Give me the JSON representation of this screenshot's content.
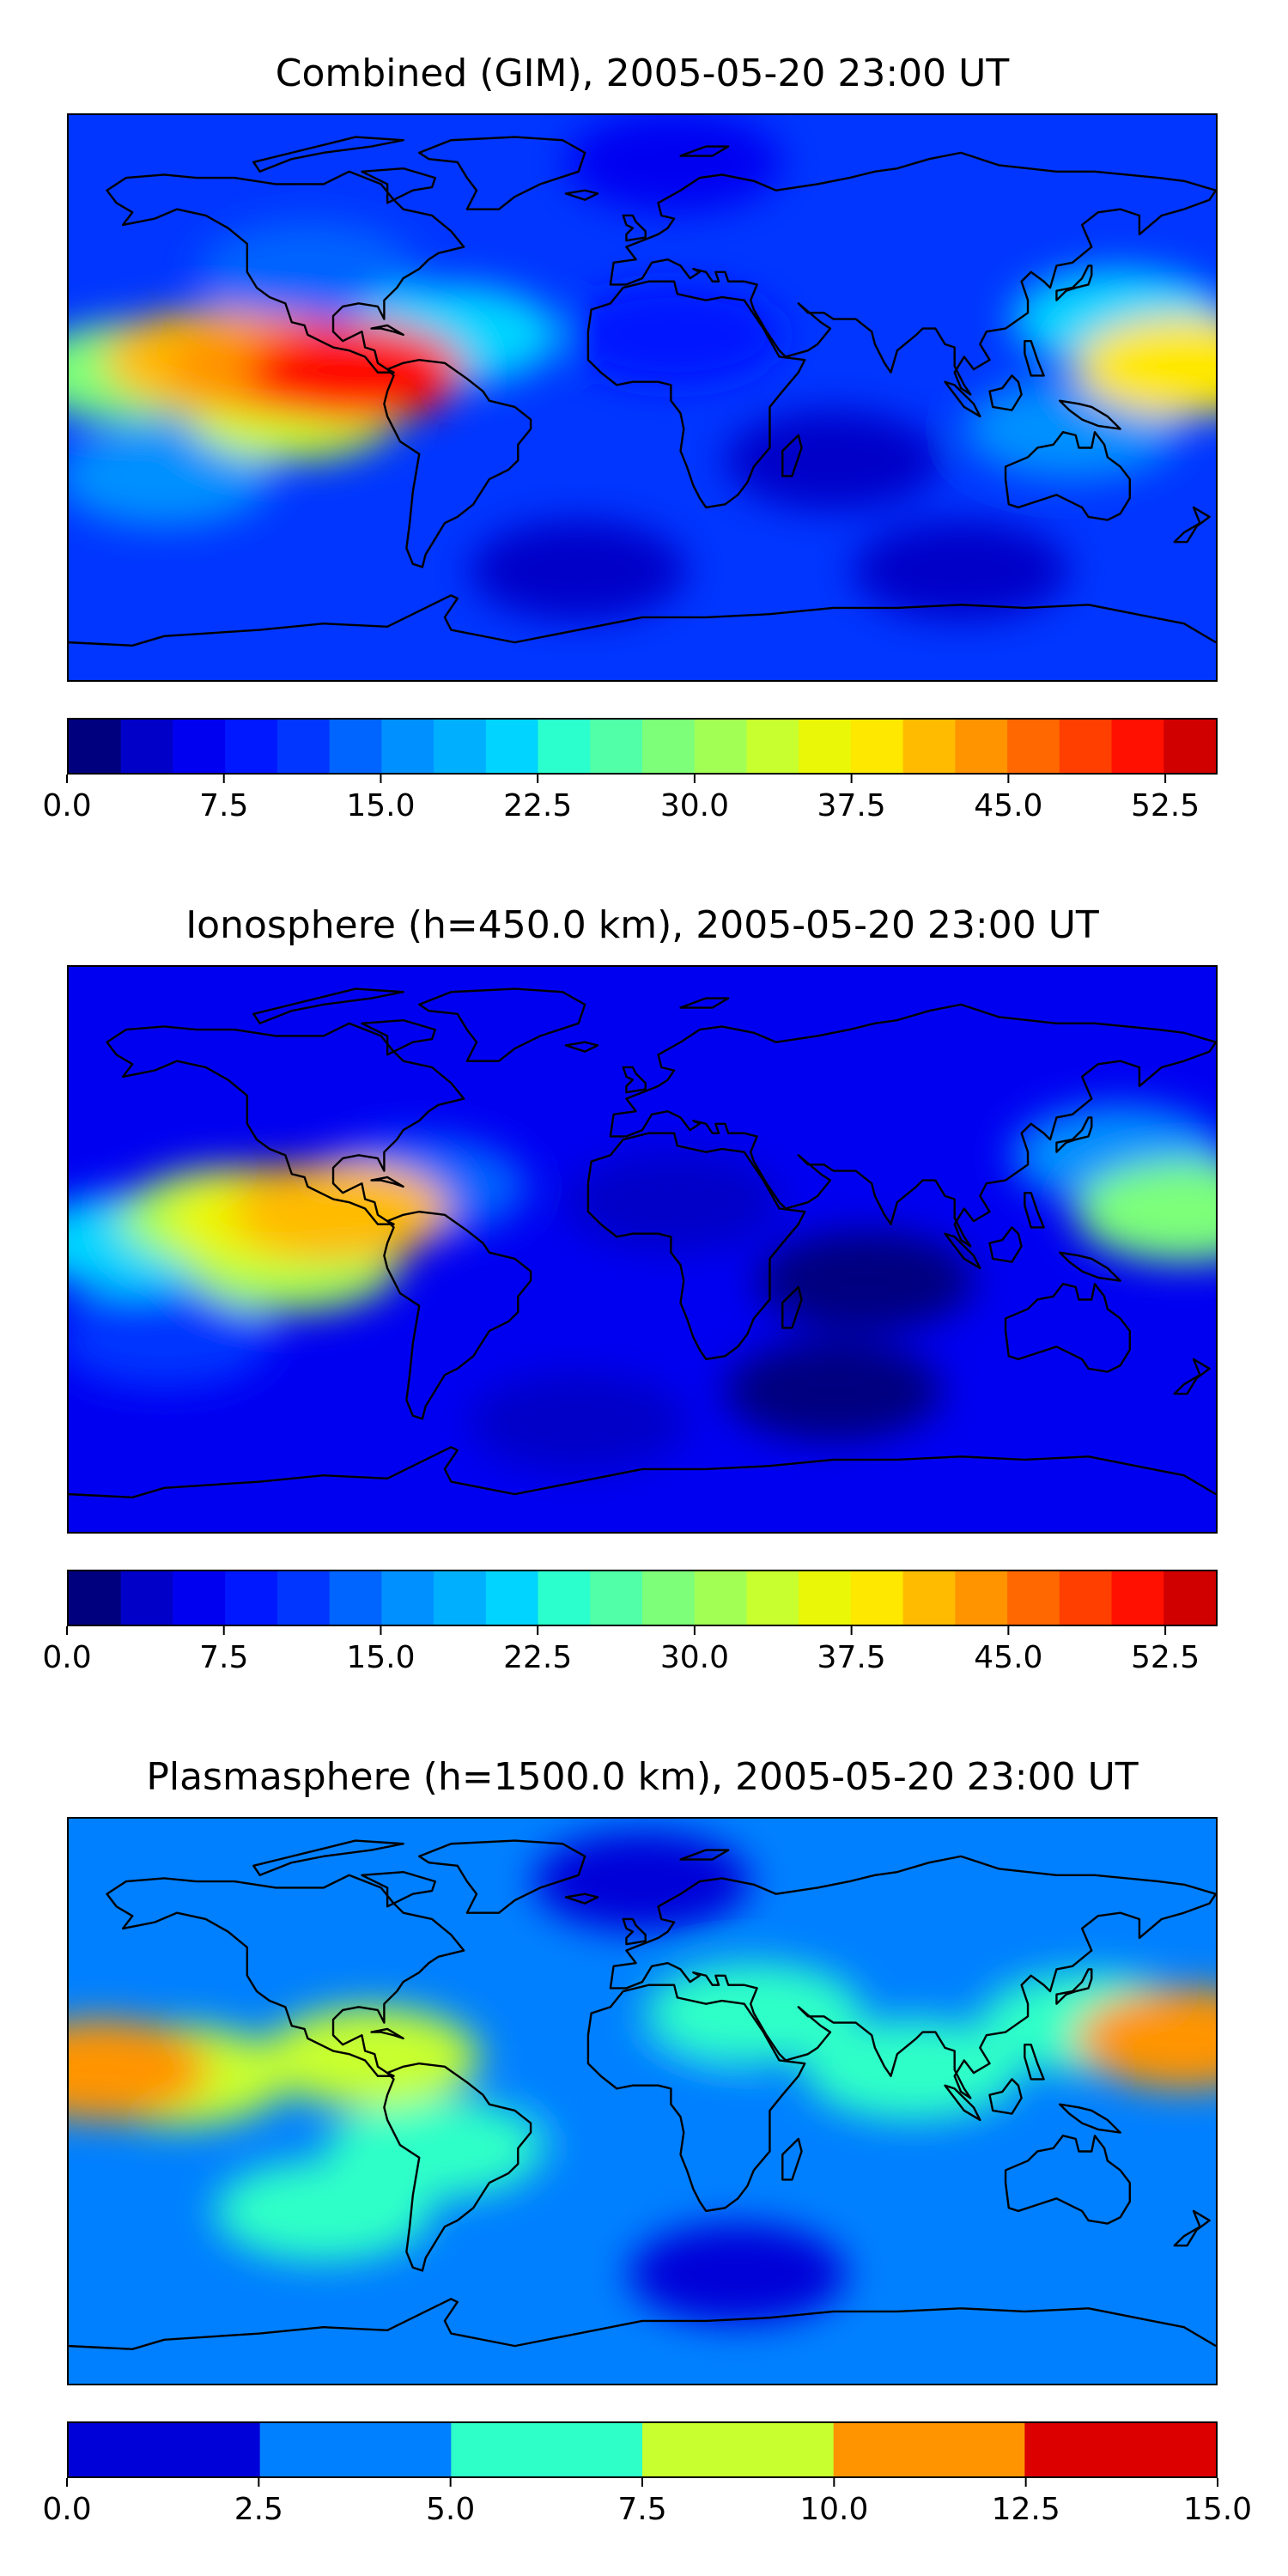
{
  "chart_data": [
    {
      "type": "heatmap",
      "title": "Combined (GIM), 2005-05-20 23:00 UT",
      "colorbar": {
        "levels": [
          0.0,
          2.5,
          5.0,
          7.5,
          10.0,
          12.5,
          15.0,
          17.5,
          20.0,
          22.5,
          25.0,
          27.5,
          30.0,
          32.5,
          35.0,
          37.5,
          40.0,
          42.5,
          45.0,
          47.5,
          50.0,
          52.5,
          55.0
        ],
        "colors": [
          "#00007f",
          "#0000c8",
          "#0000f1",
          "#0018ff",
          "#0036ff",
          "#0064ff",
          "#0090ff",
          "#00b0ff",
          "#00d4ff",
          "#2bffce",
          "#50ffa8",
          "#7dff7a",
          "#a2ff54",
          "#c8ff2e",
          "#eaf706",
          "#ffe800",
          "#ffbb00",
          "#ff9400",
          "#ff6800",
          "#ff3f00",
          "#ff1000",
          "#d10000",
          "#8b0000"
        ],
        "tick_values": [
          0.0,
          7.5,
          15.0,
          22.5,
          30.0,
          37.5,
          45.0,
          52.5
        ],
        "tick_labels": [
          "0.0",
          "7.5",
          "15.0",
          "22.5",
          "30.0",
          "37.5",
          "45.0",
          "52.5"
        ],
        "range": [
          0.0,
          55.0
        ]
      },
      "features": [
        {
          "lon": -115,
          "lat": 10,
          "value": 44
        },
        {
          "lon": -90,
          "lat": 8,
          "value": 50
        },
        {
          "lon": -135,
          "lat": 12,
          "value": 40
        },
        {
          "lon": -110,
          "lat": -4,
          "value": 34
        },
        {
          "lon": -160,
          "lat": 8,
          "value": 28
        },
        {
          "lon": -60,
          "lat": 20,
          "value": 20
        },
        {
          "lon": -105,
          "lat": 40,
          "value": 14
        },
        {
          "lon": 170,
          "lat": 10,
          "value": 38
        },
        {
          "lon": 150,
          "lat": 25,
          "value": 22
        },
        {
          "lon": 135,
          "lat": -10,
          "value": 16
        },
        {
          "lon": -150,
          "lat": -25,
          "value": 16
        },
        {
          "lon": 10,
          "lat": 20,
          "value": 8
        },
        {
          "lon": 60,
          "lat": -20,
          "value": 3
        },
        {
          "lon": -20,
          "lat": -55,
          "value": 4
        },
        {
          "lon": 100,
          "lat": -55,
          "value": 3
        },
        {
          "lon": 10,
          "lat": 75,
          "value": 6
        }
      ],
      "background_value": 10
    },
    {
      "type": "heatmap",
      "title": "Ionosphere  (h=450.0 km), 2005-05-20 23:00 UT",
      "colorbar": {
        "levels": [
          0.0,
          2.5,
          5.0,
          7.5,
          10.0,
          12.5,
          15.0,
          17.5,
          20.0,
          22.5,
          25.0,
          27.5,
          30.0,
          32.5,
          35.0,
          37.5,
          40.0,
          42.5,
          45.0,
          47.5,
          50.0,
          52.5,
          55.0
        ],
        "colors": [
          "#00007f",
          "#0000c8",
          "#0000f1",
          "#0018ff",
          "#0036ff",
          "#0064ff",
          "#0090ff",
          "#00b0ff",
          "#00d4ff",
          "#2bffce",
          "#50ffa8",
          "#7dff7a",
          "#a2ff54",
          "#c8ff2e",
          "#eaf706",
          "#ffe800",
          "#ffbb00",
          "#ff9400",
          "#ff6800",
          "#ff3f00",
          "#ff1000",
          "#d10000",
          "#8b0000"
        ],
        "tick_values": [
          0.0,
          7.5,
          15.0,
          22.5,
          30.0,
          37.5,
          45.0,
          52.5
        ],
        "tick_labels": [
          "0.0",
          "7.5",
          "15.0",
          "22.5",
          "30.0",
          "37.5",
          "45.0",
          "52.5"
        ],
        "range": [
          0.0,
          55.0
        ]
      },
      "features": [
        {
          "lon": -115,
          "lat": 10,
          "value": 36
        },
        {
          "lon": -95,
          "lat": 12,
          "value": 40
        },
        {
          "lon": -130,
          "lat": 10,
          "value": 30
        },
        {
          "lon": -110,
          "lat": -4,
          "value": 30
        },
        {
          "lon": -160,
          "lat": 2,
          "value": 22
        },
        {
          "lon": -70,
          "lat": 20,
          "value": 14
        },
        {
          "lon": 170,
          "lat": 12,
          "value": 28
        },
        {
          "lon": 150,
          "lat": 30,
          "value": 16
        },
        {
          "lon": -150,
          "lat": -28,
          "value": 12
        },
        {
          "lon": 10,
          "lat": 15,
          "value": 4
        },
        {
          "lon": 70,
          "lat": -10,
          "value": 1
        },
        {
          "lon": 60,
          "lat": -45,
          "value": 1
        },
        {
          "lon": -20,
          "lat": -55,
          "value": 3
        },
        {
          "lon": 20,
          "lat": 75,
          "value": 5
        }
      ],
      "background_value": 7
    },
    {
      "type": "heatmap",
      "title": "Plasmasphere (h=1500.0 km), 2005-05-20 23:00 UT",
      "colorbar": {
        "levels": [
          0.0,
          2.5,
          5.0,
          7.5,
          10.0,
          12.5,
          15.0
        ],
        "colors": [
          "#0000d8",
          "#0080ff",
          "#2effc8",
          "#c8ff2e",
          "#ff9400",
          "#dd0000"
        ],
        "tick_values": [
          0.0,
          2.5,
          5.0,
          7.5,
          10.0,
          12.5,
          15.0
        ],
        "tick_labels": [
          "0.0",
          "2.5",
          "5.0",
          "7.5",
          "10.0",
          "12.5",
          "15.0"
        ],
        "range": [
          0.0,
          15.0
        ]
      },
      "features": [
        {
          "lon": -170,
          "lat": 10,
          "value": 11
        },
        {
          "lon": -145,
          "lat": 8,
          "value": 8.5
        },
        {
          "lon": -85,
          "lat": 14,
          "value": 8.2
        },
        {
          "lon": -65,
          "lat": -15,
          "value": 6
        },
        {
          "lon": -100,
          "lat": -35,
          "value": 6
        },
        {
          "lon": 170,
          "lat": 20,
          "value": 11
        },
        {
          "lon": 140,
          "lat": 25,
          "value": 6
        },
        {
          "lon": 35,
          "lat": 28,
          "value": 6
        },
        {
          "lon": 85,
          "lat": 10,
          "value": 6
        },
        {
          "lon": 0,
          "lat": 0,
          "value": 4
        },
        {
          "lon": 30,
          "lat": -55,
          "value": 1
        },
        {
          "lon": 0,
          "lat": 70,
          "value": 1
        }
      ],
      "background_value": 3
    }
  ],
  "colors": {
    "coastline": "#000000",
    "frame": "#000000"
  }
}
